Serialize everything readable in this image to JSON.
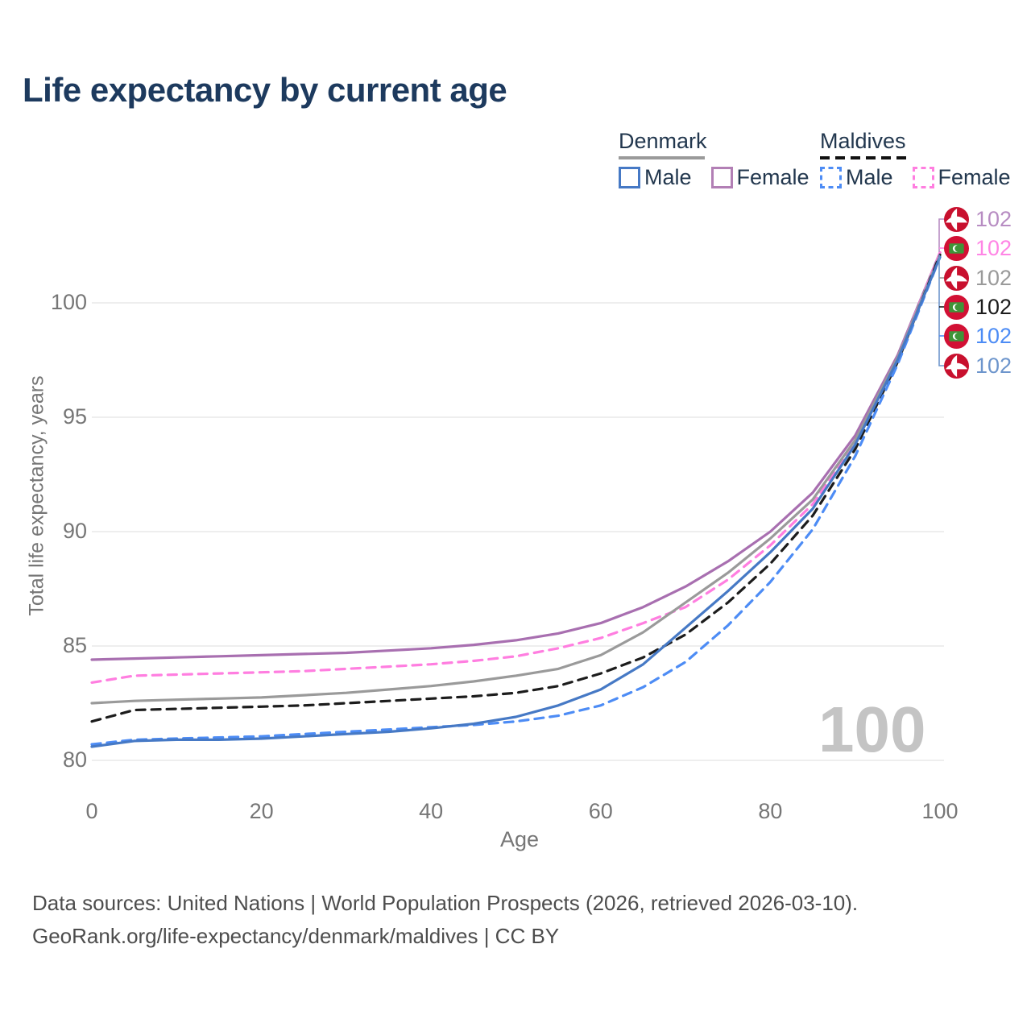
{
  "title": "Life expectancy by current age",
  "legend": {
    "groups": [
      {
        "name": "Denmark",
        "underline_style": "solid",
        "underline_color": "#9a9a9a",
        "items": [
          {
            "label": "Male",
            "color": "#4679c5",
            "dashed": false
          },
          {
            "label": "Female",
            "color": "#b27fb5",
            "dashed": false
          }
        ]
      },
      {
        "name": "Maldives",
        "underline_style": "dashed",
        "underline_color": "#111111",
        "items": [
          {
            "label": "Male",
            "color": "#4d8cf5",
            "dashed": true
          },
          {
            "label": "Female",
            "color": "#ff7ee0",
            "dashed": true
          }
        ]
      }
    ]
  },
  "chart_data": {
    "type": "line",
    "title": "Life expectancy by current age",
    "xlabel": "Age",
    "ylabel": "Total life expectancy, years",
    "xlim": [
      0,
      100
    ],
    "ylim": [
      79.5,
      103
    ],
    "xticks": [
      0,
      20,
      40,
      60,
      80,
      100
    ],
    "yticks": [
      80,
      85,
      90,
      95,
      100
    ],
    "grid": "horizontal",
    "legend_position": "top-right",
    "watermark": "100",
    "x": [
      0,
      5,
      10,
      15,
      20,
      25,
      30,
      35,
      40,
      45,
      50,
      55,
      60,
      65,
      70,
      75,
      80,
      85,
      90,
      95,
      100
    ],
    "series": [
      {
        "name": "Denmark Female",
        "country": "Denmark",
        "sex": "Female",
        "color": "#a86fb0",
        "dashed": false,
        "values": [
          84.4,
          84.45,
          84.5,
          84.55,
          84.6,
          84.65,
          84.7,
          84.8,
          84.9,
          85.05,
          85.25,
          85.55,
          86.0,
          86.7,
          87.6,
          88.7,
          90.0,
          91.7,
          94.2,
          97.7,
          102.2
        ]
      },
      {
        "name": "Maldives Female",
        "country": "Maldives",
        "sex": "Female",
        "color": "#ff7ee0",
        "dashed": true,
        "values": [
          83.4,
          83.7,
          83.75,
          83.8,
          83.85,
          83.9,
          84.0,
          84.1,
          84.2,
          84.35,
          84.55,
          84.9,
          85.35,
          86.0,
          86.7,
          87.9,
          89.4,
          91.2,
          93.9,
          97.6,
          102.2
        ]
      },
      {
        "name": "Denmark",
        "country": "Denmark",
        "sex": "Both",
        "color": "#9a9a9a",
        "dashed": false,
        "values": [
          82.5,
          82.6,
          82.65,
          82.7,
          82.75,
          82.85,
          82.95,
          83.1,
          83.25,
          83.45,
          83.7,
          84.0,
          84.6,
          85.6,
          86.9,
          88.2,
          89.7,
          91.4,
          94.0,
          97.6,
          102.1
        ]
      },
      {
        "name": "Maldives",
        "country": "Maldives",
        "sex": "Both",
        "color": "#1c1c1c",
        "dashed": true,
        "values": [
          81.7,
          82.2,
          82.25,
          82.3,
          82.35,
          82.4,
          82.5,
          82.6,
          82.7,
          82.8,
          82.95,
          83.25,
          83.8,
          84.5,
          85.5,
          86.9,
          88.6,
          90.7,
          93.6,
          97.4,
          102.1
        ]
      },
      {
        "name": "Maldives Male",
        "country": "Maldives",
        "sex": "Male",
        "color": "#4d8cf5",
        "dashed": true,
        "values": [
          80.7,
          80.9,
          80.95,
          81.0,
          81.05,
          81.15,
          81.25,
          81.35,
          81.45,
          81.55,
          81.7,
          81.95,
          82.4,
          83.2,
          84.3,
          85.9,
          87.8,
          90.1,
          93.3,
          97.3,
          102.0
        ]
      },
      {
        "name": "Denmark Male",
        "country": "Denmark",
        "sex": "Male",
        "color": "#4679c5",
        "dashed": false,
        "values": [
          80.6,
          80.85,
          80.9,
          80.9,
          80.95,
          81.05,
          81.15,
          81.25,
          81.4,
          81.6,
          81.9,
          82.4,
          83.1,
          84.2,
          85.8,
          87.4,
          89.1,
          91.0,
          93.8,
          97.5,
          102.0
        ]
      }
    ],
    "end_labels": [
      {
        "flag": "denmark",
        "value": "102",
        "color": "#b78cc2",
        "series": "Denmark Female"
      },
      {
        "flag": "maldives",
        "value": "102",
        "color": "#ff85e5",
        "series": "Maldives Female"
      },
      {
        "flag": "denmark",
        "value": "102",
        "color": "#9a9a9a",
        "series": "Denmark"
      },
      {
        "flag": "maldives",
        "value": "102",
        "color": "#1c1c1c",
        "series": "Maldives"
      },
      {
        "flag": "maldives",
        "value": "102",
        "color": "#4d8cf5",
        "series": "Maldives Male"
      },
      {
        "flag": "denmark",
        "value": "102",
        "color": "#6d95cc",
        "series": "Denmark Male"
      }
    ]
  },
  "footer": {
    "line1": "Data sources: United Nations | World Population Prospects (2026, retrieved 2026-03-10).",
    "line2": "GeoRank.org/life-expectancy/denmark/maldives | CC BY"
  }
}
